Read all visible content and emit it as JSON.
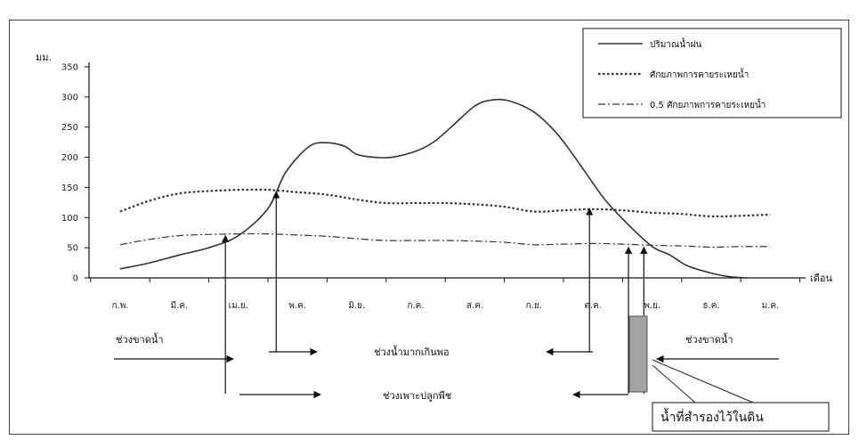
{
  "chart_data": {
    "type": "line",
    "y_unit_label": "มม.",
    "x_axis_label": "เดือน",
    "ylim": [
      0,
      350
    ],
    "y_ticks": [
      0,
      50,
      100,
      150,
      200,
      250,
      300,
      350
    ],
    "categories": [
      "ก.พ.",
      "มี.ค.",
      "เม.ย.",
      "พ.ค.",
      "มิ.ย.",
      "ก.ค.",
      "ส.ค.",
      "ก.ย.",
      "ต.ค.",
      "พ.ย.",
      "ธ.ค.",
      "ม.ค."
    ],
    "series": [
      {
        "name": "ปริมาณน้ำฝน",
        "style": "solid",
        "color": "#333333",
        "points": [
          [
            0,
            15
          ],
          [
            0.5,
            25
          ],
          [
            1,
            38
          ],
          [
            1.5,
            50
          ],
          [
            2,
            70
          ],
          [
            2.5,
            115
          ],
          [
            2.8,
            175
          ],
          [
            3.2,
            218
          ],
          [
            3.5,
            224
          ],
          [
            3.8,
            218
          ],
          [
            4,
            205
          ],
          [
            4.3,
            200
          ],
          [
            4.6,
            200
          ],
          [
            5,
            210
          ],
          [
            5.3,
            225
          ],
          [
            5.6,
            250
          ],
          [
            6,
            285
          ],
          [
            6.3,
            295
          ],
          [
            6.6,
            293
          ],
          [
            7,
            275
          ],
          [
            7.4,
            238
          ],
          [
            7.8,
            185
          ],
          [
            8.2,
            130
          ],
          [
            8.6,
            88
          ],
          [
            9,
            52
          ],
          [
            9.3,
            38
          ],
          [
            9.6,
            20
          ],
          [
            10,
            8
          ],
          [
            10.3,
            2
          ],
          [
            10.6,
            0
          ]
        ]
      },
      {
        "name": "ศักยภาพการคายระเหยน้ำ",
        "style": "dotted",
        "color": "#333333",
        "points": [
          [
            0,
            110
          ],
          [
            0.5,
            128
          ],
          [
            1,
            140
          ],
          [
            1.5,
            144
          ],
          [
            2,
            146
          ],
          [
            2.5,
            146
          ],
          [
            3,
            142
          ],
          [
            3.5,
            138
          ],
          [
            4,
            130
          ],
          [
            4.5,
            124
          ],
          [
            5,
            124
          ],
          [
            5.5,
            124
          ],
          [
            6,
            122
          ],
          [
            6.5,
            118
          ],
          [
            7,
            110
          ],
          [
            7.5,
            112
          ],
          [
            8,
            114
          ],
          [
            8.5,
            112
          ],
          [
            9,
            108
          ],
          [
            9.5,
            106
          ],
          [
            10,
            102
          ],
          [
            10.5,
            103
          ],
          [
            11,
            105
          ]
        ]
      },
      {
        "name": "0.5 ศักยภาพการคายระเหยน้ำ",
        "style": "dashdot",
        "color": "#333333",
        "points": [
          [
            0,
            55
          ],
          [
            0.5,
            64
          ],
          [
            1,
            70
          ],
          [
            1.5,
            72
          ],
          [
            2,
            73
          ],
          [
            2.5,
            73
          ],
          [
            3,
            71
          ],
          [
            3.5,
            69
          ],
          [
            4,
            65
          ],
          [
            4.5,
            62
          ],
          [
            5,
            62
          ],
          [
            5.5,
            62
          ],
          [
            6,
            61
          ],
          [
            6.5,
            59
          ],
          [
            7,
            55
          ],
          [
            7.5,
            56
          ],
          [
            8,
            57
          ],
          [
            8.5,
            56
          ],
          [
            9,
            54
          ],
          [
            9.5,
            53
          ],
          [
            10,
            51
          ],
          [
            10.5,
            52
          ],
          [
            11,
            52
          ]
        ]
      }
    ],
    "event_markers": [
      {
        "x": 1.78,
        "y": 73
      },
      {
        "x": 2.64,
        "y": 146
      },
      {
        "x": 7.94,
        "y": 118
      },
      {
        "x": 8.6,
        "y": 54
      },
      {
        "x": 8.86,
        "y": 54
      }
    ],
    "legend_placement": "top-right",
    "grid": false,
    "period_annotations": {
      "deficit_left": "ช่วงขาดน้ำ",
      "surplus": "ช่วงน้ำมากเกินพอ",
      "deficit_right": "ช่วงขาดน้ำ",
      "growing": "ช่วงเพาะปลูกพืช",
      "soil_storage": "น้ำที่สำรองไว้ในดิน"
    }
  }
}
